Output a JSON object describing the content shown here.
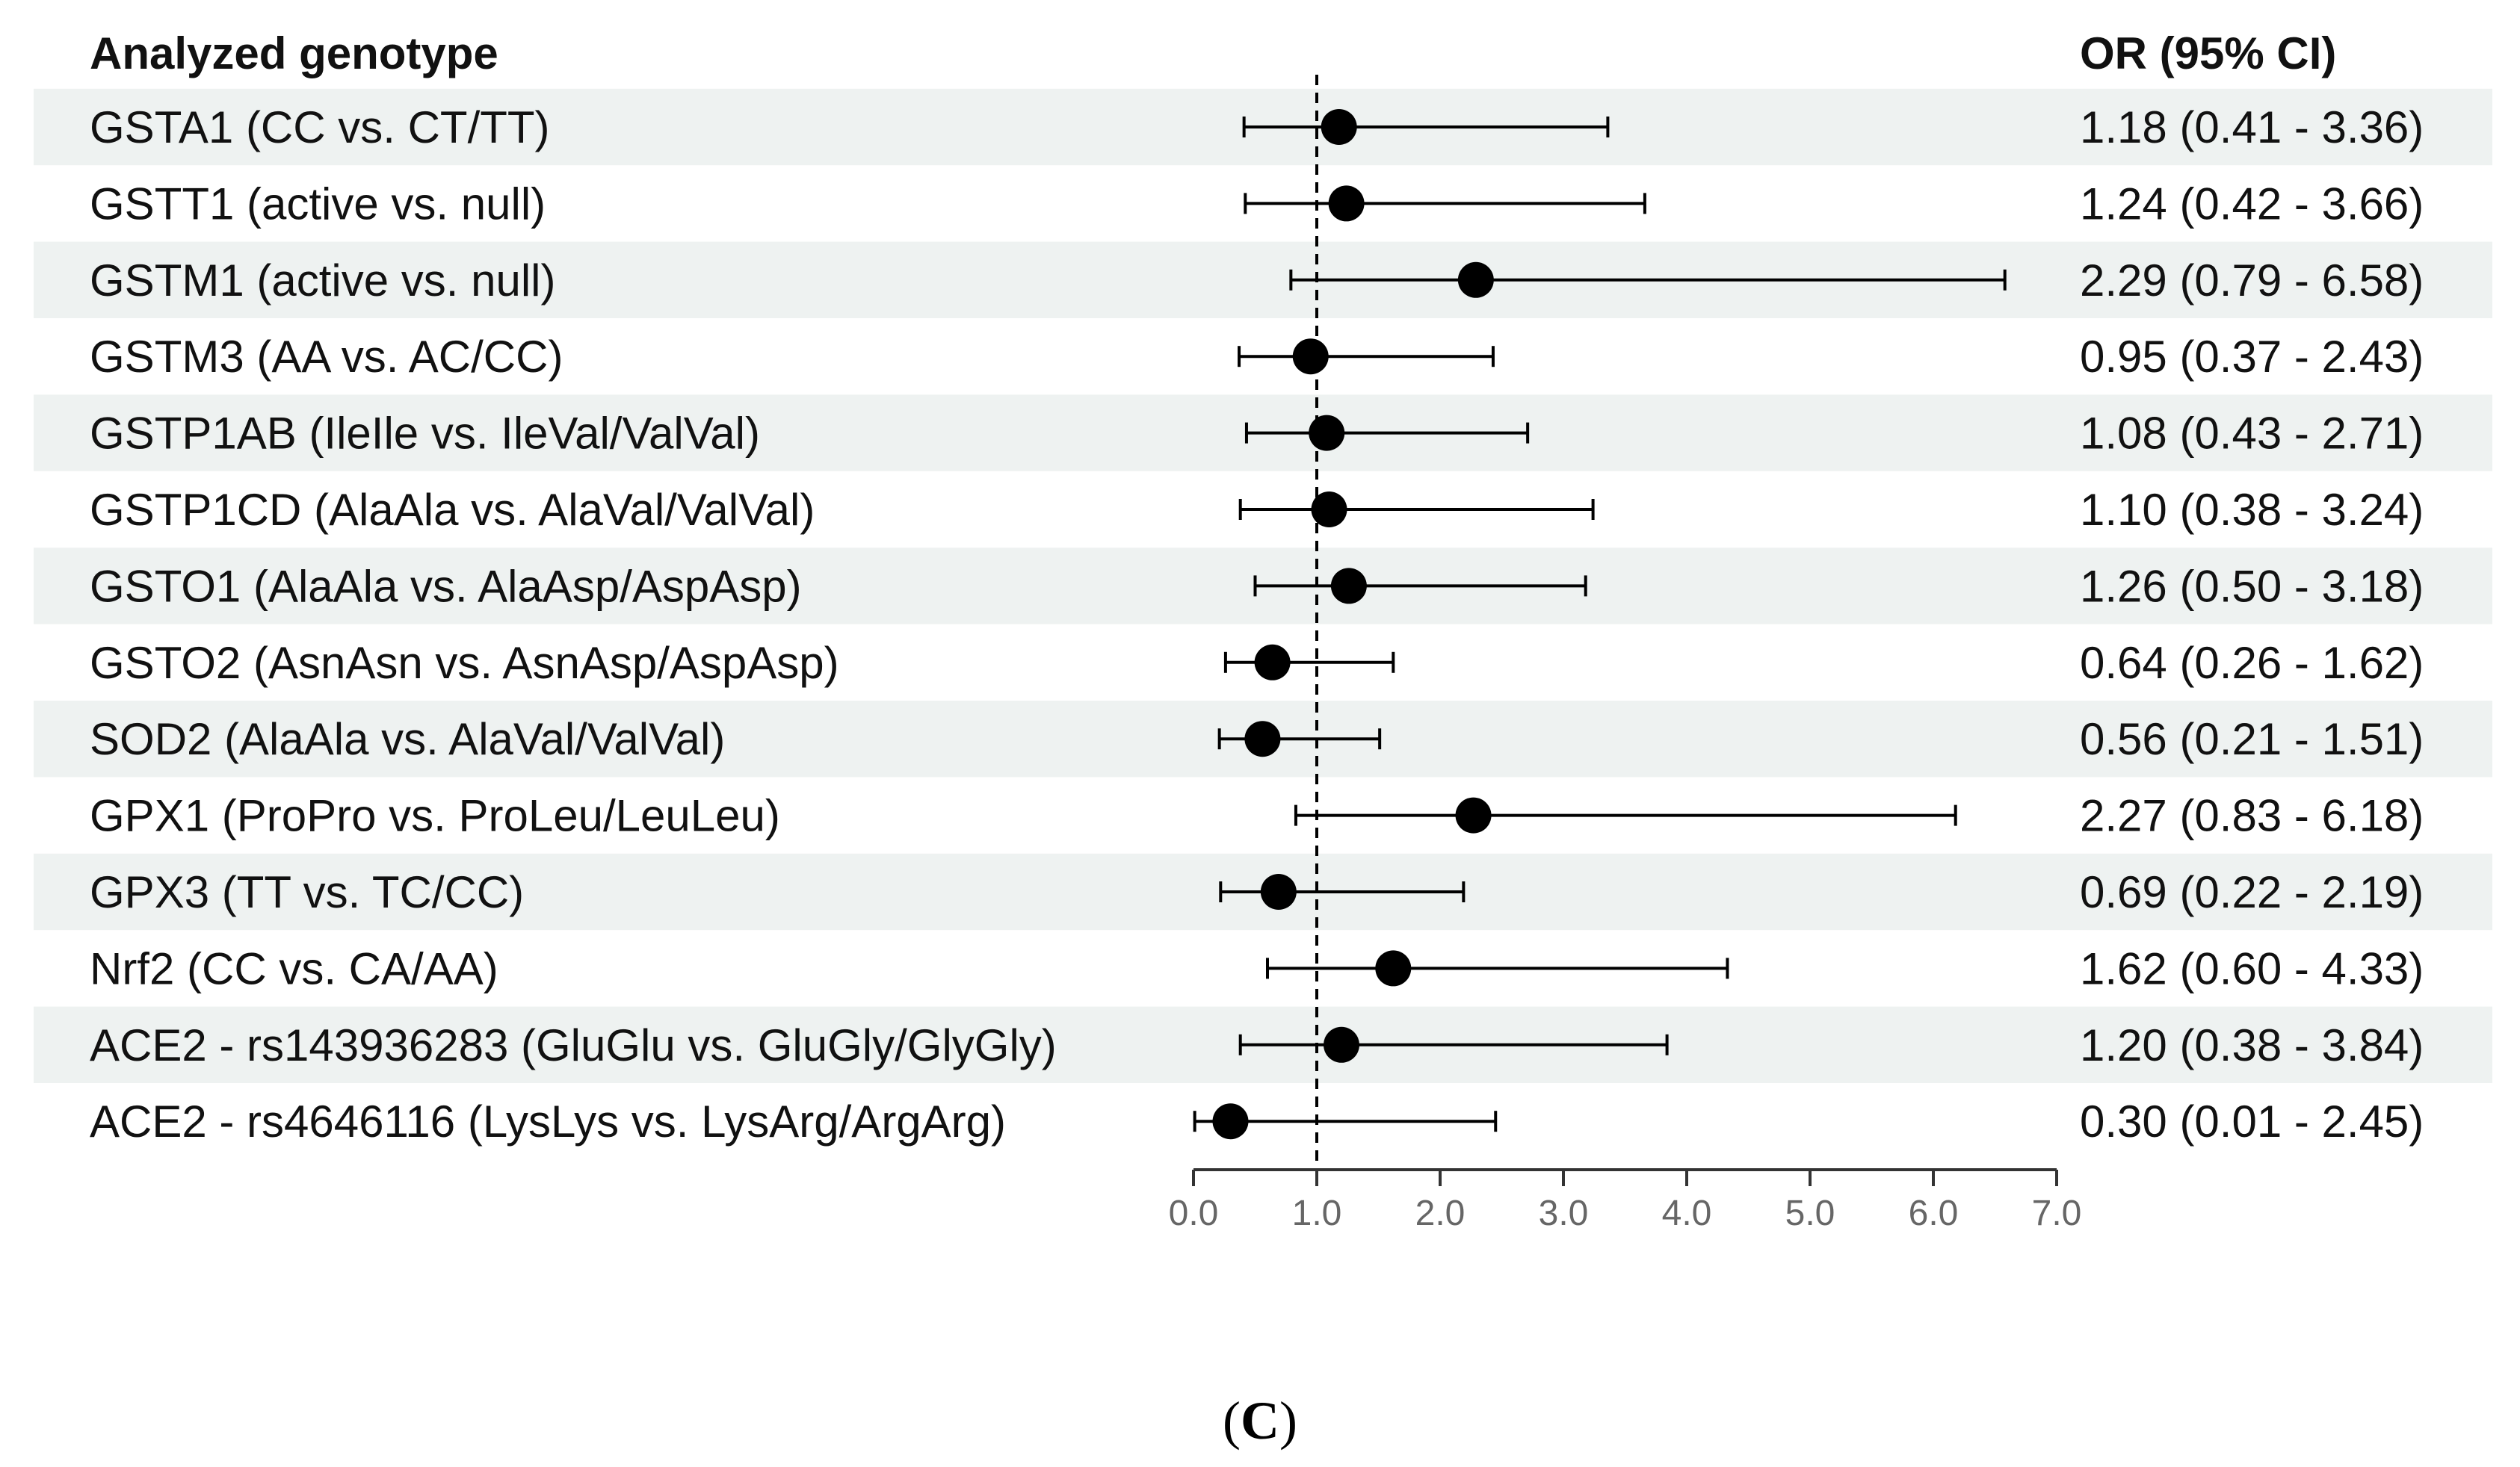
{
  "chart_data": {
    "type": "forest",
    "columns": {
      "left_header": "Analyzed genotype",
      "right_header": "OR (95% CI)"
    },
    "reference_line": 1.0,
    "xlim": [
      0.0,
      7.0
    ],
    "ticks": [
      "0.0",
      "1.0",
      "2.0",
      "3.0",
      "4.0",
      "5.0",
      "6.0",
      "7.0"
    ],
    "rows": [
      {
        "label": "GSTA1 (CC vs. CT/TT)",
        "or": 1.18,
        "lower": 0.41,
        "upper": 3.36,
        "ci_text": "1.18 (0.41 - 3.36)"
      },
      {
        "label": "GSTT1 (active vs. null)",
        "or": 1.24,
        "lower": 0.42,
        "upper": 3.66,
        "ci_text": "1.24 (0.42 - 3.66)"
      },
      {
        "label": "GSTM1 (active vs. null)",
        "or": 2.29,
        "lower": 0.79,
        "upper": 6.58,
        "ci_text": "2.29 (0.79 - 6.58)"
      },
      {
        "label": "GSTM3 (AA vs. AC/CC)",
        "or": 0.95,
        "lower": 0.37,
        "upper": 2.43,
        "ci_text": "0.95 (0.37 - 2.43)"
      },
      {
        "label": "GSTP1AB (IleIle vs. IleVal/ValVal)",
        "or": 1.08,
        "lower": 0.43,
        "upper": 2.71,
        "ci_text": "1.08 (0.43 - 2.71)"
      },
      {
        "label": "GSTP1CD (AlaAla vs. AlaVal/ValVal)",
        "or": 1.1,
        "lower": 0.38,
        "upper": 3.24,
        "ci_text": "1.10 (0.38 - 3.24)"
      },
      {
        "label": "GSTO1 (AlaAla vs. AlaAsp/AspAsp)",
        "or": 1.26,
        "lower": 0.5,
        "upper": 3.18,
        "ci_text": "1.26 (0.50 - 3.18)"
      },
      {
        "label": "GSTO2 (AsnAsn vs. AsnAsp/AspAsp)",
        "or": 0.64,
        "lower": 0.26,
        "upper": 1.62,
        "ci_text": "0.64 (0.26 - 1.62)"
      },
      {
        "label": "SOD2 (AlaAla vs. AlaVal/ValVal)",
        "or": 0.56,
        "lower": 0.21,
        "upper": 1.51,
        "ci_text": "0.56 (0.21 - 1.51)"
      },
      {
        "label": "GPX1 (ProPro vs. ProLeu/LeuLeu)",
        "or": 2.27,
        "lower": 0.83,
        "upper": 6.18,
        "ci_text": "2.27 (0.83 - 6.18)"
      },
      {
        "label": "GPX3 (TT vs. TC/CC)",
        "or": 0.69,
        "lower": 0.22,
        "upper": 2.19,
        "ci_text": "0.69 (0.22 - 2.19)"
      },
      {
        "label": "Nrf2 (CC vs. CA/AA)",
        "or": 1.62,
        "lower": 0.6,
        "upper": 4.33,
        "ci_text": "1.62 (0.60 - 4.33)"
      },
      {
        "label": "ACE2 - rs143936283 (GluGlu vs. GluGly/GlyGly)",
        "or": 1.2,
        "lower": 0.38,
        "upper": 3.84,
        "ci_text": "1.20 (0.38 - 3.84)"
      },
      {
        "label": "ACE2 - rs4646116 (LysLys vs. LysArg/ArgArg)",
        "or": 0.3,
        "lower": 0.01,
        "upper": 2.45,
        "ci_text": "0.30 (0.01 - 2.45)"
      }
    ],
    "panel_label": {
      "open": "(",
      "letter": "C",
      "close": ")"
    }
  },
  "colors": {
    "band": "#eef2f1",
    "mark": "#000000",
    "axis": "#333333",
    "tick_text": "#666666"
  }
}
